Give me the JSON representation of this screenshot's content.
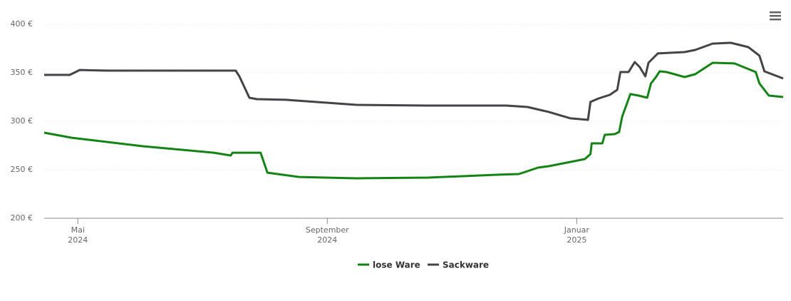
{
  "chart_data": {
    "type": "line",
    "ylim": [
      200,
      400
    ],
    "yticks": [
      {
        "value": 200,
        "label": "200 €"
      },
      {
        "value": 250,
        "label": "250 €"
      },
      {
        "value": 300,
        "label": "300 €"
      },
      {
        "value": 350,
        "label": "350 €"
      },
      {
        "value": 400,
        "label": "400 €"
      }
    ],
    "xlim": [
      3.46,
      15.31
    ],
    "xticks": [
      {
        "value": 4,
        "label": "Mai 2024"
      },
      {
        "value": 8,
        "label": "September 2024"
      },
      {
        "value": 12,
        "label": "Januar 2025"
      }
    ],
    "grid": true,
    "legend": "bottom",
    "series": [
      {
        "name": "lose Ware",
        "color": "#138413",
        "x": [
          3.46,
          3.9,
          5.04,
          6.18,
          6.45,
          6.48,
          6.93,
          7.04,
          7.55,
          8.47,
          9.61,
          10.75,
          11.07,
          11.38,
          11.55,
          11.9,
          12.13,
          12.22,
          12.24,
          12.41,
          12.45,
          12.61,
          12.68,
          12.73,
          12.86,
          12.99,
          13.13,
          13.19,
          13.27,
          13.33,
          13.44,
          13.73,
          13.9,
          14.18,
          14.53,
          14.87,
          14.93,
          15.08,
          15.31
        ],
        "values": [
          288.2,
          283,
          274.3,
          267.6,
          264.7,
          267.6,
          267.6,
          247,
          242.6,
          241.2,
          241.9,
          244.9,
          245.6,
          252.2,
          253.7,
          258.1,
          261,
          266.2,
          277.2,
          277.2,
          286,
          286.8,
          289,
          305.1,
          328,
          326.5,
          324.3,
          339,
          345.6,
          351.5,
          350.7,
          345.6,
          348.5,
          360.3,
          359.6,
          350.7,
          339,
          326.5,
          325
        ]
      },
      {
        "name": "Sackware",
        "color": "#434348",
        "x": [
          3.46,
          3.87,
          4.03,
          4.47,
          6.53,
          6.59,
          6.75,
          6.87,
          7.33,
          8.47,
          9.61,
          10.87,
          11.21,
          11.55,
          11.9,
          12.18,
          12.22,
          12.35,
          12.53,
          12.65,
          12.7,
          12.83,
          12.93,
          13.01,
          13.1,
          13.15,
          13.3,
          13.73,
          13.9,
          14.18,
          14.47,
          14.75,
          14.93,
          15.01,
          15.31
        ],
        "values": [
          347.8,
          347.8,
          352.9,
          352.2,
          352.2,
          346.3,
          324.3,
          322.8,
          322.1,
          316.9,
          316.2,
          316.2,
          314.7,
          309.6,
          303,
          301.5,
          319.9,
          323.5,
          327.2,
          332.4,
          350.7,
          350.7,
          361,
          355.9,
          346.3,
          360.3,
          369.9,
          371.3,
          373.5,
          380.1,
          380.9,
          376.5,
          367.6,
          351.5,
          344.1
        ]
      }
    ]
  }
}
